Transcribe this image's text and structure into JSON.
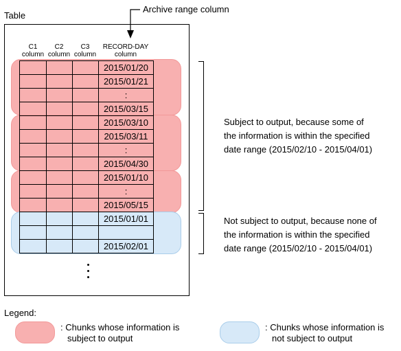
{
  "diagram": {
    "table_label": "Table",
    "archive_label": "Archive range column",
    "columns": [
      {
        "line1": "C1",
        "line2": "column"
      },
      {
        "line1": "C2",
        "line2": "column"
      },
      {
        "line1": "C3",
        "line2": "column"
      },
      {
        "line1": "RECORD-DAY",
        "line2": "column"
      }
    ],
    "chunks": [
      {
        "status": "output",
        "rows": [
          "2015/01/20",
          "2015/01/21",
          ":",
          "2015/03/15"
        ]
      },
      {
        "status": "output",
        "rows": [
          "2015/03/10",
          "2015/03/11",
          ":",
          "2015/04/30"
        ]
      },
      {
        "status": "output",
        "rows": [
          "2015/01/10",
          ":",
          "2015/05/15"
        ]
      },
      {
        "status": "not_output",
        "rows": [
          "2015/01/01",
          "",
          "2015/02/01"
        ]
      }
    ],
    "note_output": [
      "Subject to output, because some of",
      "the information is within the specified",
      "date range (2015/02/10 - 2015/04/01)"
    ],
    "note_not_output": [
      "Not subject to output, because none of",
      "the information is within the specified",
      "date range (2015/02/10 - 2015/04/01)"
    ]
  },
  "legend": {
    "title": "Legend:",
    "output_text": [
      ": Chunks whose information is",
      "subject to output"
    ],
    "not_output_text": [
      ": Chunks whose information is",
      "not subject to output"
    ],
    "colors": {
      "output": "#f8b0b0",
      "not_output": "#d7e9f8"
    }
  }
}
